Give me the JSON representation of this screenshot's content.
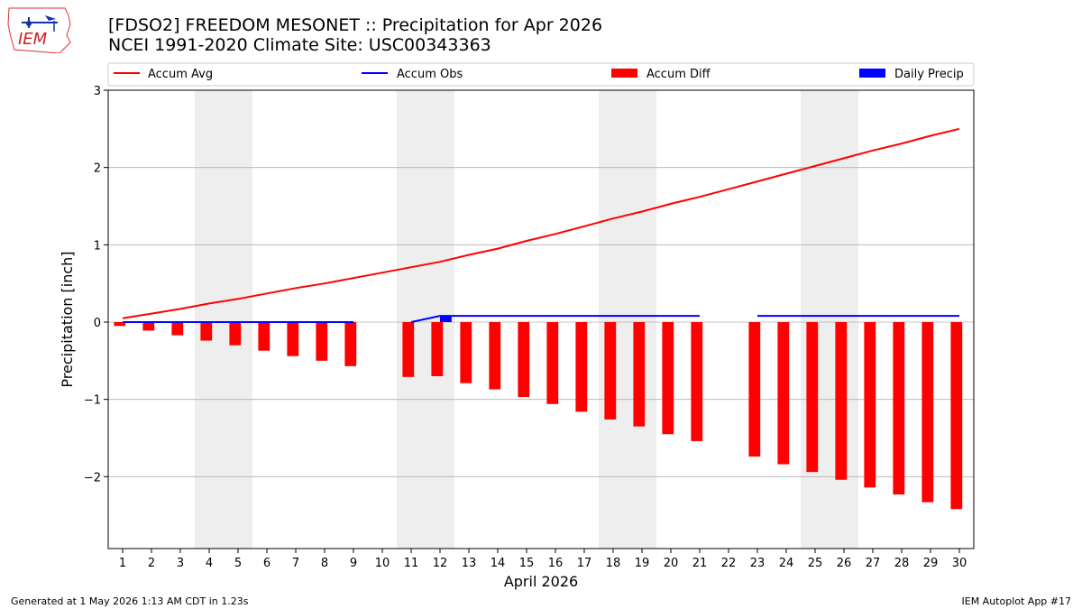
{
  "header": {
    "title_line1": "[FDSO2] FREEDOM MESONET :: Precipitation for Apr 2026",
    "title_line2": "NCEI 1991-2020 Climate Site: USC00343363",
    "logo_text": "IEM"
  },
  "footer": {
    "generated": "Generated at 1 May 2026 1:13 AM CDT in 1.23s",
    "app": "IEM Autoplot App #17"
  },
  "colors": {
    "accum_avg": "#ff0000",
    "accum_obs": "#0000ff",
    "accum_diff": "#ff0000",
    "daily_precip": "#0000ff",
    "weekend_shade": "#eeeeee",
    "grid": "#b0b0b0"
  },
  "chart_data": {
    "type": "bar",
    "xlabel": "April 2026",
    "ylabel": "Precipitation [inch]",
    "xlim": [
      0.5,
      30.5
    ],
    "ylim": [
      -2.93,
      3.0
    ],
    "yticks": [
      -2,
      -1,
      0,
      1,
      2,
      3
    ],
    "ytick_labels": [
      "−2",
      "−1",
      "0",
      "1",
      "2",
      "3"
    ],
    "grid": "horizontal",
    "legend_placement": "top",
    "days": [
      1,
      2,
      3,
      4,
      5,
      6,
      7,
      8,
      9,
      10,
      11,
      12,
      13,
      14,
      15,
      16,
      17,
      18,
      19,
      20,
      21,
      22,
      23,
      24,
      25,
      26,
      27,
      28,
      29,
      30
    ],
    "day_labels": [
      "1",
      "2",
      "3",
      "4",
      "5",
      "6",
      "7",
      "8",
      "9",
      "10",
      "11",
      "12",
      "13",
      "14",
      "15",
      "16",
      "17",
      "18",
      "19",
      "20",
      "21",
      "22",
      "23",
      "24",
      "25",
      "26",
      "27",
      "28",
      "29",
      "30"
    ],
    "shaded_days": [
      4,
      5,
      11,
      12,
      18,
      19,
      25,
      26
    ],
    "legend": [
      "Accum Avg",
      "Accum Obs",
      "Accum Diff",
      "Daily Precip"
    ],
    "series": [
      {
        "name": "Accum Avg",
        "type": "line",
        "values": [
          0.05,
          0.11,
          0.17,
          0.24,
          0.3,
          0.37,
          0.44,
          0.5,
          0.57,
          0.64,
          0.71,
          0.78,
          0.87,
          0.95,
          1.05,
          1.14,
          1.24,
          1.34,
          1.43,
          1.53,
          1.62,
          1.72,
          1.82,
          1.92,
          2.02,
          2.12,
          2.22,
          2.31,
          2.41,
          2.5
        ]
      },
      {
        "name": "Accum Obs",
        "type": "line",
        "values": [
          0,
          0,
          0,
          0,
          0,
          0,
          0,
          0,
          0,
          null,
          0,
          0.08,
          0.08,
          0.08,
          0.08,
          0.08,
          0.08,
          0.08,
          0.08,
          0.08,
          0.08,
          null,
          0.08,
          0.08,
          0.08,
          0.08,
          0.08,
          0.08,
          0.08,
          0.08
        ]
      },
      {
        "name": "Accum Diff",
        "type": "bar",
        "values": [
          -0.05,
          -0.11,
          -0.17,
          -0.24,
          -0.3,
          -0.37,
          -0.44,
          -0.5,
          -0.57,
          null,
          -0.71,
          -0.7,
          -0.79,
          -0.87,
          -0.97,
          -1.06,
          -1.16,
          -1.26,
          -1.35,
          -1.45,
          -1.54,
          null,
          -1.74,
          -1.84,
          -1.94,
          -2.04,
          -2.14,
          -2.23,
          -2.33,
          -2.42
        ]
      },
      {
        "name": "Daily Precip",
        "type": "bar",
        "values": [
          0,
          0,
          0,
          0,
          0,
          0,
          0,
          0,
          0,
          null,
          0,
          0.08,
          0,
          0,
          0,
          0,
          0,
          0,
          0,
          0,
          0,
          null,
          0,
          0,
          0,
          0,
          0,
          0,
          0,
          0
        ]
      }
    ]
  }
}
